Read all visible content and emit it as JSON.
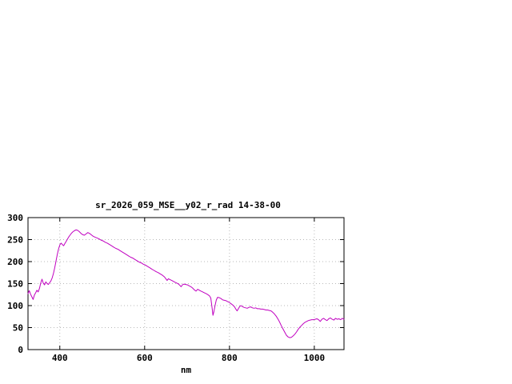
{
  "page": {
    "background": "#ffffff"
  },
  "chart_data": {
    "type": "line",
    "title": "sr_2026_059_MSE__y02_r_rad 14-38-00",
    "xlabel": "nm",
    "ylabel": "",
    "xlim": [
      325,
      1070
    ],
    "ylim": [
      0,
      300
    ],
    "x_ticks": [
      400,
      600,
      800,
      1000
    ],
    "y_ticks": [
      0,
      50,
      100,
      150,
      200,
      250,
      300
    ],
    "grid": true,
    "legend": "none",
    "line_color": "#c000c0",
    "grid_color": "#b8b8b8",
    "axis_color": "#000000",
    "series": [
      {
        "name": "sr_2026_059_MSE__y02_r_rad",
        "x": [
          325,
          328,
          331,
          334,
          337,
          340,
          343,
          346,
          349,
          352,
          355,
          358,
          361,
          364,
          367,
          370,
          373,
          376,
          379,
          382,
          385,
          388,
          391,
          394,
          397,
          400,
          403,
          406,
          409,
          412,
          415,
          418,
          421,
          424,
          427,
          430,
          434,
          438,
          442,
          446,
          450,
          454,
          458,
          462,
          466,
          470,
          474,
          478,
          482,
          487,
          492,
          497,
          502,
          507,
          512,
          517,
          522,
          527,
          532,
          537,
          542,
          547,
          552,
          557,
          562,
          567,
          572,
          577,
          582,
          587,
          592,
          597,
          602,
          607,
          612,
          617,
          622,
          627,
          632,
          637,
          642,
          647,
          650,
          653,
          656,
          660,
          664,
          668,
          672,
          676,
          680,
          683,
          686,
          689,
          693,
          697,
          701,
          705,
          709,
          713,
          717,
          721,
          725,
          729,
          733,
          737,
          741,
          745,
          749,
          753,
          756,
          759,
          761,
          763,
          766,
          769,
          772,
          776,
          780,
          784,
          788,
          792,
          796,
          800,
          804,
          808,
          812,
          815,
          818,
          821,
          824,
          827,
          830,
          834,
          838,
          842,
          846,
          850,
          854,
          858,
          862,
          866,
          870,
          874,
          878,
          882,
          886,
          890,
          894,
          898,
          902,
          906,
          910,
          914,
          918,
          922,
          926,
          930,
          934,
          938,
          942,
          946,
          950,
          954,
          958,
          962,
          966,
          970,
          974,
          978,
          982,
          986,
          990,
          994,
          998,
          1002,
          1006,
          1010,
          1014,
          1018,
          1022,
          1026,
          1030,
          1034,
          1038,
          1042,
          1046,
          1050,
          1054,
          1058,
          1062,
          1066,
          1070
        ],
        "y": [
          127,
          134,
          126,
          120,
          114,
          124,
          129,
          135,
          131,
          139,
          151,
          160,
          151,
          147,
          154,
          150,
          148,
          152,
          156,
          163,
          173,
          186,
          201,
          216,
          229,
          238,
          242,
          239,
          236,
          241,
          246,
          251,
          256,
          260,
          264,
          267,
          270,
          272,
          271,
          268,
          264,
          261,
          260,
          263,
          266,
          264,
          261,
          258,
          256,
          254,
          252,
          249,
          247,
          244,
          242,
          239,
          236,
          233,
          230,
          228,
          225,
          222,
          219,
          216,
          213,
          210,
          208,
          205,
          202,
          199,
          197,
          194,
          192,
          189,
          186,
          183,
          180,
          177,
          175,
          172,
          169,
          165,
          161,
          157,
          161,
          159,
          157,
          155,
          153,
          151,
          149,
          146,
          143,
          147,
          149,
          148,
          147,
          145,
          143,
          140,
          136,
          133,
          137,
          135,
          133,
          131,
          129,
          127,
          125,
          122,
          117,
          95,
          78,
          85,
          100,
          113,
          119,
          118,
          116,
          113,
          112,
          111,
          109,
          107,
          104,
          101,
          97,
          92,
          88,
          93,
          98,
          100,
          98,
          96,
          95,
          94,
          96,
          97,
          95,
          94,
          95,
          93,
          93,
          92,
          92,
          91,
          90,
          90,
          89,
          88,
          85,
          81,
          76,
          70,
          63,
          55,
          47,
          40,
          33,
          29,
          27,
          28,
          31,
          35,
          40,
          46,
          51,
          55,
          59,
          62,
          64,
          66,
          67,
          68,
          68,
          69,
          70,
          68,
          64,
          69,
          71,
          68,
          66,
          70,
          72,
          69,
          67,
          71,
          69,
          70,
          68,
          71,
          69
        ]
      }
    ]
  }
}
